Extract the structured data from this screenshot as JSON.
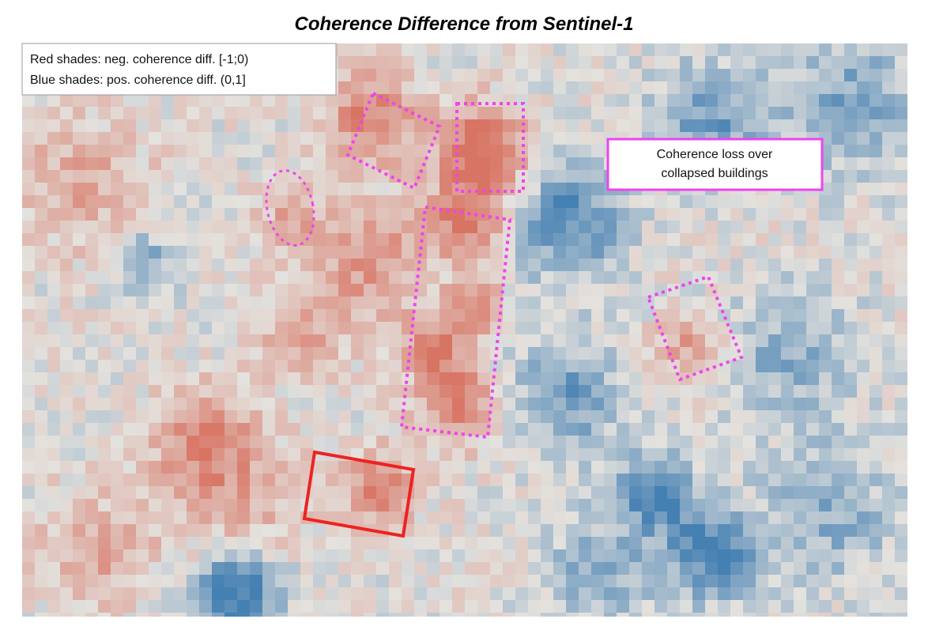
{
  "title": "Coherence Difference from Sentinel-1",
  "legend": {
    "lines": [
      "Red shades: neg. coherence diff. [-1;0)",
      "Blue shades: pos. coherence diff. (0,1]"
    ]
  },
  "annotation": {
    "lines": [
      "Coherence loss over",
      "collapsed buildings"
    ]
  }
}
